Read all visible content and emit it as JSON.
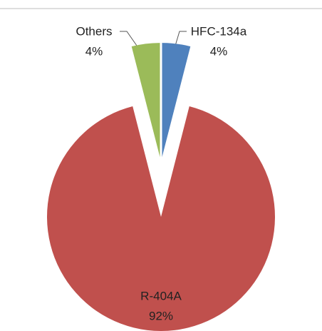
{
  "chart_data": {
    "type": "pie",
    "categories": [
      "HFC-134a",
      "R-404A",
      "Others"
    ],
    "values": [
      4,
      92,
      4
    ],
    "value_labels": [
      "4%",
      "92%",
      "4%"
    ],
    "colors": [
      "#4f81bd",
      "#c0504d",
      "#9bbb59"
    ]
  }
}
